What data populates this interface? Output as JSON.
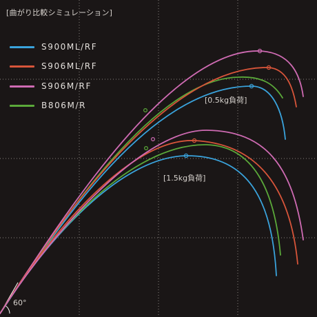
{
  "title": "[曲がり比較シミュレーション]",
  "legend": [
    {
      "label": "S900ML/RF",
      "color": "#3aa3dc"
    },
    {
      "label": "S906ML/RF",
      "color": "#d8553a"
    },
    {
      "label": "S906M/RF",
      "color": "#cf6bb3"
    },
    {
      "label": "B806M/R",
      "color": "#5ba93a"
    }
  ],
  "load_labels": {
    "light": "[0.5kg負荷]",
    "heavy": "[1.5kg負荷]"
  },
  "angle_label": "60°",
  "colors": {
    "background": "#1a1616",
    "grid": "#8a8480",
    "angle_line": "#ffffff"
  }
}
